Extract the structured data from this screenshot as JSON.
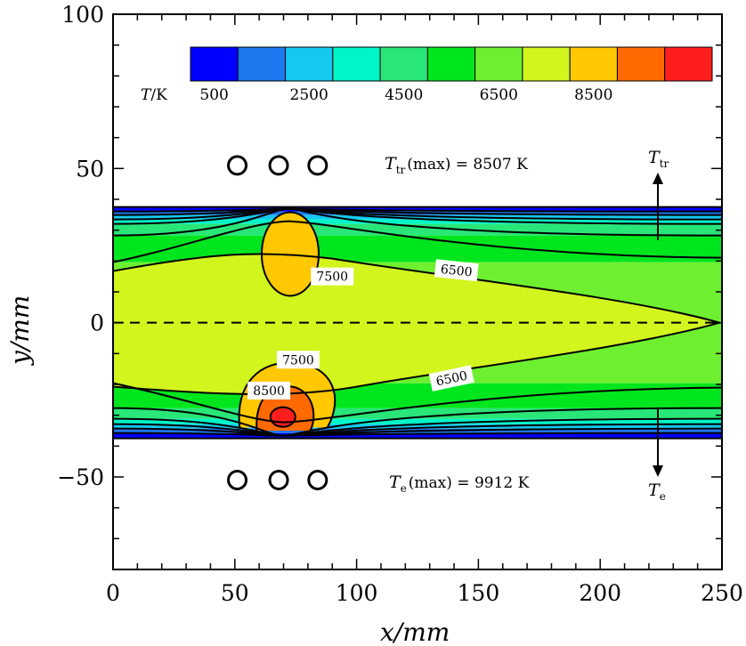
{
  "chart_data": {
    "type": "heatmap",
    "title": "",
    "xlabel": "x/mm",
    "ylabel": "y/mm",
    "xlim": [
      0,
      250
    ],
    "ylim": [
      -80,
      100
    ],
    "x_ticks": [
      0,
      50,
      100,
      150,
      200,
      250
    ],
    "x_tick_labels": [
      "0",
      "50",
      "100",
      "150",
      "200",
      "250"
    ],
    "y_ticks": [
      -50,
      0,
      50,
      100
    ],
    "y_tick_labels": [
      "−50",
      "0",
      "50",
      "100"
    ],
    "colorbar": {
      "label_var": "T",
      "label_unit": "/K",
      "levels": [
        500,
        1500,
        2500,
        3500,
        4500,
        5500,
        6500,
        7500,
        8500,
        9500
      ],
      "tick_labels": [
        "500",
        "2500",
        "4500",
        "6500",
        "8500"
      ],
      "colors": [
        "#0000ff",
        "#1e78f0",
        "#14c8f0",
        "#00f5c8",
        "#28e678",
        "#00e61e",
        "#6ef030",
        "#d2f51e",
        "#ffc800",
        "#ff6a00",
        "#ff1e1e"
      ]
    },
    "channel_y_range": [
      -37.5,
      37.5
    ],
    "centerline_y": 0,
    "coils": {
      "x": [
        51,
        68,
        84
      ],
      "y_top": 51,
      "y_bottom": -51
    },
    "hotspots": [
      {
        "region": "upper",
        "x": 72,
        "y": 24,
        "level": 7500
      },
      {
        "region": "lower",
        "x": 69,
        "y": -30,
        "level": 9500
      }
    ],
    "contour_labels": [
      {
        "text": "7500",
        "x": 90,
        "y": 15
      },
      {
        "text": "6500",
        "x": 141,
        "y": 17
      },
      {
        "text": "7500",
        "x": 76,
        "y": -12
      },
      {
        "text": "8500",
        "x": 64,
        "y": -22
      },
      {
        "text": "6500",
        "x": 139,
        "y": -18
      }
    ],
    "annotations": {
      "ttr_var": "T",
      "ttr_sub": "tr",
      "ttr_text": "(max) = 8507 K",
      "te_var": "T",
      "te_sub": "e",
      "te_text": "(max) = 9912 K"
    },
    "arrows": [
      {
        "label_var": "T",
        "label_sub": "tr",
        "direction": "up",
        "x": 223
      },
      {
        "label_var": "T",
        "label_sub": "e",
        "direction": "down",
        "x": 223
      }
    ]
  }
}
